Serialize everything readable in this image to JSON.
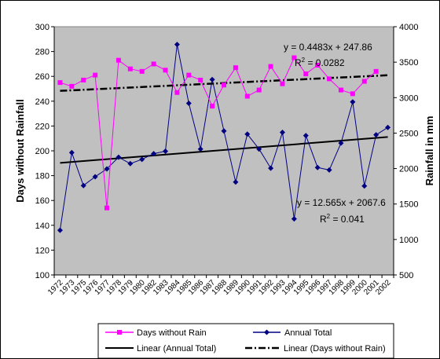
{
  "chart_data": {
    "type": "line",
    "title": "",
    "ylabel_left": "Days without Rainfall",
    "ylabel_right": "Rainfall in mm",
    "xlabel": "",
    "ylim_left": [
      100,
      300
    ],
    "ylim_right": [
      500,
      4000
    ],
    "yticks_left": [
      100,
      120,
      140,
      160,
      180,
      200,
      220,
      240,
      260,
      280,
      300
    ],
    "yticks_right": [
      500,
      1000,
      1500,
      2000,
      2500,
      3000,
      3500,
      4000
    ],
    "grid": "none",
    "plot_background": "#c0c0c0",
    "legend_position": "bottom",
    "x": [
      "1972",
      "1973",
      "1975",
      "1976",
      "1977",
      "1978",
      "1979",
      "1980",
      "1982",
      "1983",
      "1984",
      "1985",
      "1986",
      "1987",
      "1988",
      "1989",
      "1990",
      "1991",
      "1992",
      "1993",
      "1994",
      "1995",
      "1996",
      "1997",
      "1998",
      "1999",
      "2000",
      "2001",
      "2002"
    ],
    "series": [
      {
        "name": "Days without Rain",
        "axis": "left",
        "color": "#ff00ff",
        "marker": "square",
        "values": [
          255,
          252,
          257,
          261,
          154,
          273,
          266,
          264,
          270,
          265,
          247,
          261,
          257,
          236,
          253,
          267,
          244,
          249,
          268,
          254,
          275,
          262,
          269,
          258,
          249,
          246,
          256,
          264,
          null
        ]
      },
      {
        "name": "Annual Total",
        "axis": "right",
        "color": "#000080",
        "marker": "diamond",
        "values": [
          1130,
          2225,
          1760,
          1885,
          1995,
          2160,
          2070,
          2130,
          2210,
          2245,
          3750,
          2920,
          2275,
          3255,
          2530,
          1810,
          2485,
          2275,
          2005,
          2510,
          1290,
          2465,
          2015,
          1980,
          2360,
          2940,
          1755,
          2475,
          2580
        ]
      }
    ],
    "trendlines": [
      {
        "name": "Linear (Annual Total)",
        "axis": "right",
        "style": "solid",
        "equation": "y = 12.565x + 2067.6",
        "r_squared_label": "R",
        "r_squared_value": " = 0.041",
        "start": 2080,
        "end": 2445
      },
      {
        "name": "Linear (Days without Rain)",
        "axis": "left",
        "style": "dash-dot",
        "equation": "y = 0.4483x + 247.86",
        "r_squared_label": "R",
        "r_squared_value": " = 0.0282",
        "start": 248.3,
        "end": 260.9
      }
    ]
  }
}
